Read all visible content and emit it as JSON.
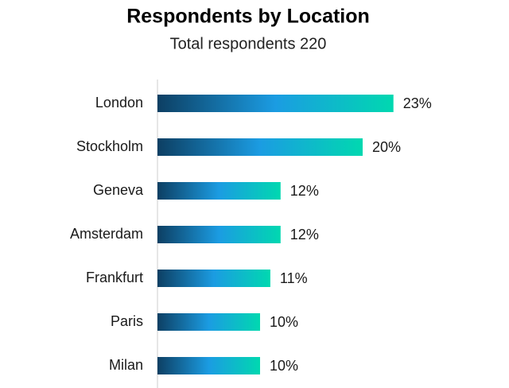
{
  "chart_data": {
    "type": "bar",
    "orientation": "horizontal",
    "title": "Respondents by Location",
    "subtitle": "Total respondents 220",
    "categories": [
      "London",
      "Stockholm",
      "Geneva",
      "Amsterdam",
      "Frankfurt",
      "Paris",
      "Milan"
    ],
    "values": [
      23,
      20,
      12,
      12,
      11,
      10,
      10
    ],
    "value_labels": [
      "23%",
      "20%",
      "12%",
      "12%",
      "11%",
      "10%",
      "10%"
    ],
    "gradient": [
      "#0d3f63",
      "#1b9ce2",
      "#00d8b0"
    ]
  }
}
